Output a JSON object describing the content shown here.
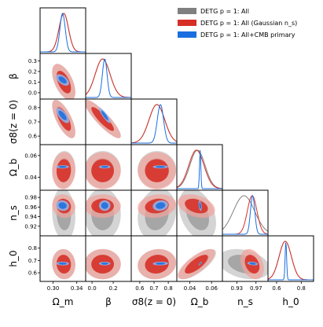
{
  "chart_data": {
    "type": "corner",
    "grid": false,
    "legend_placement": "top-right",
    "parameters": [
      {
        "key": "om",
        "label": "Ω_m",
        "ticks": [
          {
            "v": 0.3,
            "t": "0.30"
          },
          {
            "v": 0.34,
            "t": "0.34"
          }
        ],
        "range": [
          0.278,
          0.355
        ]
      },
      {
        "key": "beta",
        "label": "β",
        "ticks": [
          {
            "v": 0.0,
            "t": "0.0"
          },
          {
            "v": 0.1,
            "t": "0.1"
          },
          {
            "v": 0.2,
            "t": "0.2"
          },
          {
            "v": 0.3,
            "t": "0.3"
          }
        ],
        "range": [
          -0.06,
          0.37
        ]
      },
      {
        "key": "s8",
        "label": "σ8(z = 0)",
        "ticks": [
          {
            "v": 0.6,
            "t": "0.6"
          },
          {
            "v": 0.7,
            "t": "0.7"
          },
          {
            "v": 0.8,
            "t": "0.8"
          }
        ],
        "range": [
          0.54,
          0.86
        ]
      },
      {
        "key": "ob",
        "label": "Ω_b",
        "ticks": [
          {
            "v": 0.04,
            "t": "0.04"
          },
          {
            "v": 0.06,
            "t": "0.06"
          }
        ],
        "range": [
          0.028,
          0.07
        ]
      },
      {
        "key": "ns",
        "label": "n_s",
        "ticks": [
          {
            "v": 0.92,
            "t": "0.92"
          },
          {
            "v": 0.94,
            "t": "0.94"
          },
          {
            "v": 0.96,
            "t": "0.96"
          },
          {
            "v": 0.98,
            "t": "0.98"
          }
        ],
        "range": [
          0.9,
          0.995
        ]
      },
      {
        "key": "h0",
        "label": "h_0",
        "ticks": [
          {
            "v": 0.6,
            "t": "0.6"
          },
          {
            "v": 0.7,
            "t": "0.7"
          },
          {
            "v": 0.8,
            "t": "0.8"
          }
        ],
        "range": [
          0.53,
          0.9
        ]
      }
    ],
    "x_tick_labels": {
      "om": [
        "0.30",
        "0.34"
      ],
      "beta": [
        "0.0",
        "0.2"
      ],
      "s8": [
        "0.6",
        "0.7",
        "0.8"
      ],
      "ob": [
        "0.04",
        "0.06"
      ],
      "ns": [
        "0.93",
        "0.97"
      ],
      "h0": [
        "0.6",
        "0.8"
      ]
    },
    "x_tick_values": {
      "om": [
        0.3,
        0.34
      ],
      "beta": [
        0.0,
        0.2
      ],
      "s8": [
        0.6,
        0.7,
        0.8
      ],
      "ob": [
        0.04,
        0.06
      ],
      "ns": [
        0.93,
        0.97
      ],
      "h0": [
        0.6,
        0.8
      ]
    },
    "series": [
      {
        "name": "DETG p = 1: All",
        "color": "#808080",
        "light_color": "#c4c4c4",
        "mean": {
          "om": 0.318,
          "beta": 0.1,
          "s8": 0.72,
          "ob": 0.047,
          "ns": 0.945,
          "h0": 0.67
        },
        "sigma": {
          "om": 0.008,
          "beta": 0.07,
          "s8": 0.055,
          "ob": 0.007,
          "ns": 0.022,
          "h0": 0.05
        }
      },
      {
        "name": "DETG p = 1: All (Gaussian n_s)",
        "color": "#d62f26",
        "light_color": "#f0a39c",
        "mean": {
          "om": 0.318,
          "beta": 0.1,
          "s8": 0.72,
          "ob": 0.046,
          "ns": 0.962,
          "h0": 0.67
        },
        "sigma": {
          "om": 0.008,
          "beta": 0.07,
          "s8": 0.055,
          "ob": 0.007,
          "ns": 0.01,
          "h0": 0.05
        }
      },
      {
        "name": "DETG p = 1: All+CMB primary",
        "color": "#1a6fe0",
        "light_color": "#8fb6f2",
        "mean": {
          "om": 0.316,
          "beta": 0.12,
          "s8": 0.745,
          "ob": 0.0495,
          "ns": 0.963,
          "h0": 0.675
        },
        "sigma": {
          "om": 0.0045,
          "beta": 0.022,
          "s8": 0.022,
          "ob": 0.0006,
          "ns": 0.0045,
          "h0": 0.006
        }
      }
    ],
    "correlations": {
      "om|beta": -0.55,
      "om|s8": -0.7,
      "beta|s8": -0.88,
      "om|ob": 0.05,
      "beta|ob": 0.0,
      "s8|ob": 0.0,
      "om|ns": -0.1,
      "beta|ns": 0.0,
      "s8|ns": 0.15,
      "ob|ns": -0.35,
      "om|h0": -0.05,
      "beta|h0": 0.0,
      "s8|h0": 0.1,
      "ob|h0": 0.75,
      "ns|h0": -0.3
    }
  }
}
